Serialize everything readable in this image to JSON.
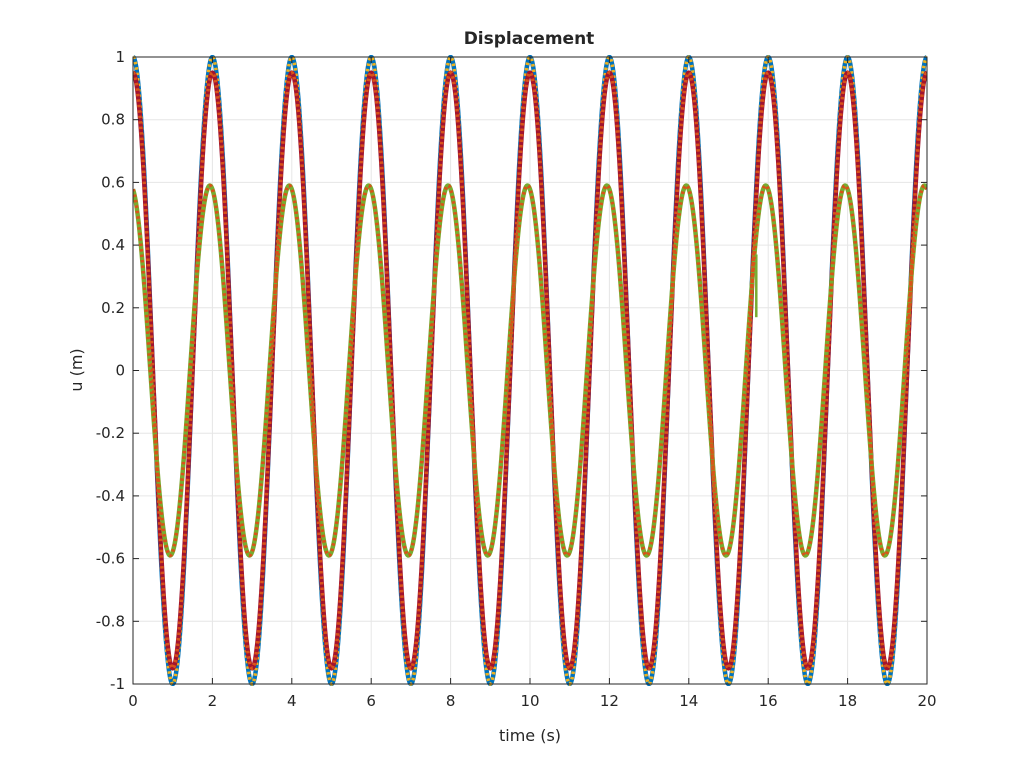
{
  "chart_data": {
    "type": "line",
    "title": "Displacement",
    "xlabel": "time (s)",
    "ylabel": "u (m)",
    "xlim": [
      0,
      20
    ],
    "ylim": [
      -1,
      1
    ],
    "x_ticks": [
      0,
      2,
      4,
      6,
      8,
      10,
      12,
      14,
      16,
      18,
      20
    ],
    "y_ticks": [
      -1,
      -0.8,
      -0.6,
      -0.4,
      -0.2,
      0,
      0.2,
      0.4,
      0.6,
      0.8,
      1
    ],
    "y_tick_labels": [
      "-1",
      "-0.8",
      "-0.6",
      "-0.4",
      "-0.2",
      "0",
      "0.2",
      "0.4",
      "0.6",
      "0.8",
      "1"
    ],
    "x_tick_labels": [
      "0",
      "2",
      "4",
      "6",
      "8",
      "10",
      "12",
      "14",
      "16",
      "18",
      "20"
    ],
    "grid": true,
    "box": true,
    "series": [
      {
        "color": "#0072BD",
        "style": "solid",
        "function": "cos",
        "amplitude": 1.0,
        "period": 2.0,
        "phase": 0.0
      },
      {
        "color": "#EDB120",
        "style": "dotted",
        "function": "cos",
        "amplitude": 1.0,
        "period": 2.0,
        "phase": 0.0
      },
      {
        "color": "#A2142F",
        "style": "solid",
        "function": "cos",
        "amplitude": 0.95,
        "period": 2.0,
        "phase": 0.0
      },
      {
        "color": "#77AC30",
        "style": "solid",
        "function": "cos",
        "amplitude": 0.59,
        "period": 2.0,
        "phase": 0.2,
        "note_discontinuity": {
          "x": 15.7,
          "y_from": 0.17,
          "y_to": 0.37
        }
      },
      {
        "color": "#D95319",
        "style": "dotted",
        "function": "cos",
        "amplitude": 0.95,
        "period": 2.0,
        "phase": 0.0
      },
      {
        "color": "#D95319",
        "style": "dotted",
        "function": "cos",
        "amplitude": 0.59,
        "period": 2.0,
        "phase": 0.2
      }
    ]
  }
}
